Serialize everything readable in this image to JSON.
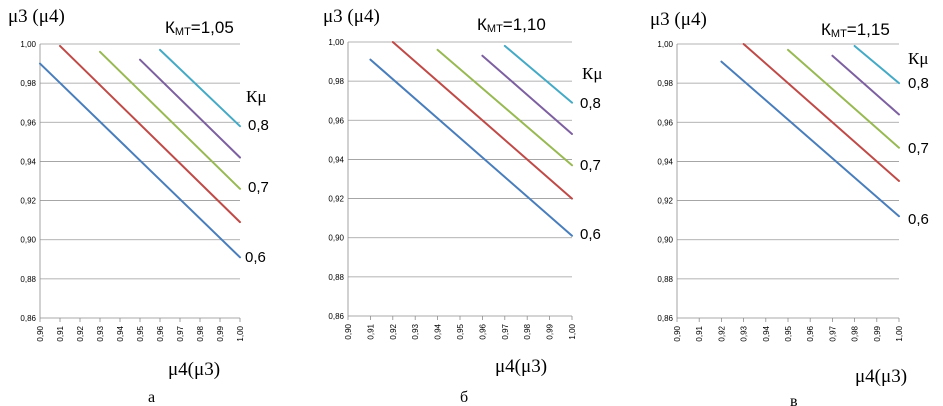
{
  "chart_data": [
    {
      "type": "line",
      "panel": "а",
      "title": "КМТ=1,05",
      "title_main": "К",
      "title_sub": "МТ",
      "title_value": "=1,05",
      "xlabel": "μ4(μ3)",
      "ylabel": "μ3 (μ4)",
      "legend_title": "Кμ",
      "xlim": [
        0.9,
        1.0
      ],
      "ylim": [
        0.86,
        1.0
      ],
      "x_ticks": [
        "0,90",
        "0,91",
        "0,92",
        "0,93",
        "0,94",
        "0,95",
        "0,96",
        "0,97",
        "0,98",
        "0,99",
        "1,00"
      ],
      "y_ticks": [
        "0,86",
        "0,88",
        "0,90",
        "0,92",
        "0,94",
        "0,96",
        "0,98",
        "1,00"
      ],
      "grid": true,
      "series": [
        {
          "name": "0,6",
          "color": "#4a7ebb",
          "x": [
            0.9,
            1.0
          ],
          "y": [
            0.99,
            0.891
          ],
          "label": "0,6"
        },
        {
          "name": "",
          "color": "#be4b48",
          "x": [
            0.91,
            1.0
          ],
          "y": [
            0.999,
            0.909
          ],
          "label": ""
        },
        {
          "name": "0,7",
          "color": "#98b954",
          "x": [
            0.93,
            1.0
          ],
          "y": [
            0.996,
            0.926
          ],
          "label": "0,7"
        },
        {
          "name": "",
          "color": "#7d60a0",
          "x": [
            0.95,
            1.0
          ],
          "y": [
            0.992,
            0.942
          ],
          "label": ""
        },
        {
          "name": "0,8",
          "color": "#46aac5",
          "x": [
            0.96,
            1.0
          ],
          "y": [
            0.997,
            0.958
          ],
          "label": "0,8"
        }
      ]
    },
    {
      "type": "line",
      "panel": "б",
      "title": "КМТ=1,10",
      "title_main": "К",
      "title_sub": "МТ",
      "title_value": "=1,10",
      "xlabel": "μ4(μ3)",
      "ylabel": "μ3 (μ4)",
      "legend_title": "Кμ",
      "xlim": [
        0.9,
        1.0
      ],
      "ylim": [
        0.86,
        1.0
      ],
      "x_ticks": [
        "0,90",
        "0,91",
        "0,92",
        "0,93",
        "0,94",
        "0,95",
        "0,96",
        "0,97",
        "0,98",
        "0,99",
        "1,00"
      ],
      "y_ticks": [
        "0,86",
        "0,88",
        "0,90",
        "0,92",
        "0,94",
        "0,96",
        "0,98",
        "1,00"
      ],
      "grid": true,
      "series": [
        {
          "name": "0,6",
          "color": "#4a7ebb",
          "x": [
            0.91,
            1.0
          ],
          "y": [
            0.991,
            0.901
          ],
          "label": "0,6"
        },
        {
          "name": "",
          "color": "#be4b48",
          "x": [
            0.92,
            1.0
          ],
          "y": [
            1.0,
            0.92
          ],
          "label": ""
        },
        {
          "name": "0,7",
          "color": "#98b954",
          "x": [
            0.94,
            1.0
          ],
          "y": [
            0.996,
            0.937
          ],
          "label": "0,7"
        },
        {
          "name": "",
          "color": "#7d60a0",
          "x": [
            0.96,
            1.0
          ],
          "y": [
            0.993,
            0.953
          ],
          "label": ""
        },
        {
          "name": "0,8",
          "color": "#46aac5",
          "x": [
            0.97,
            1.0
          ],
          "y": [
            0.998,
            0.969
          ],
          "label": "0,8"
        }
      ]
    },
    {
      "type": "line",
      "panel": "в",
      "title": "КМТ=1,15",
      "title_main": "К",
      "title_sub": "МТ",
      "title_value": "=1,15",
      "xlabel": "μ4(μ3)",
      "ylabel": "μ3 (μ4)",
      "legend_title": "Кμ",
      "xlim": [
        0.9,
        1.0
      ],
      "ylim": [
        0.86,
        1.0
      ],
      "x_ticks": [
        "0,90",
        "0,91",
        "0,92",
        "0,93",
        "0,94",
        "0,95",
        "0,96",
        "0,97",
        "0,98",
        "0,99",
        "1,00"
      ],
      "y_ticks": [
        "0,86",
        "0,88",
        "0,90",
        "0,92",
        "0,94",
        "0,96",
        "0,98",
        "1,00"
      ],
      "grid": true,
      "series": [
        {
          "name": "0,6",
          "color": "#4a7ebb",
          "x": [
            0.92,
            1.0
          ],
          "y": [
            0.991,
            0.912
          ],
          "label": "0,6"
        },
        {
          "name": "",
          "color": "#be4b48",
          "x": [
            0.93,
            1.0
          ],
          "y": [
            1.0,
            0.93
          ],
          "label": ""
        },
        {
          "name": "0,7",
          "color": "#98b954",
          "x": [
            0.95,
            1.0
          ],
          "y": [
            0.997,
            0.947
          ],
          "label": "0,7"
        },
        {
          "name": "",
          "color": "#7d60a0",
          "x": [
            0.97,
            1.0
          ],
          "y": [
            0.994,
            0.964
          ],
          "label": ""
        },
        {
          "name": "0,8",
          "color": "#46aac5",
          "x": [
            0.98,
            1.0
          ],
          "y": [
            0.999,
            0.98
          ],
          "label": "0,8"
        }
      ]
    }
  ]
}
